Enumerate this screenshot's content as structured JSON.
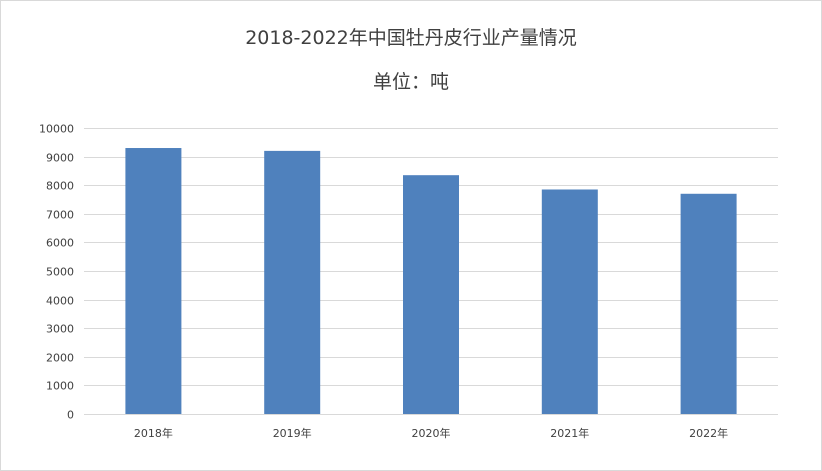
{
  "chart_data": {
    "type": "bar",
    "title": "2018-2022年中国牡丹皮行业产量情况",
    "subtitle": "单位：吨",
    "categories": [
      "2018年",
      "2019年",
      "2020年",
      "2021年",
      "2022年"
    ],
    "values": [
      9300,
      9200,
      8350,
      7850,
      7700
    ],
    "ylim": [
      0,
      10000
    ],
    "yticks": [
      "0",
      "1000",
      "2000",
      "3000",
      "4000",
      "5000",
      "6000",
      "7000",
      "8000",
      "9000",
      "10000"
    ],
    "grid": true,
    "legend": "none",
    "bar_color": "#4f81bd"
  }
}
